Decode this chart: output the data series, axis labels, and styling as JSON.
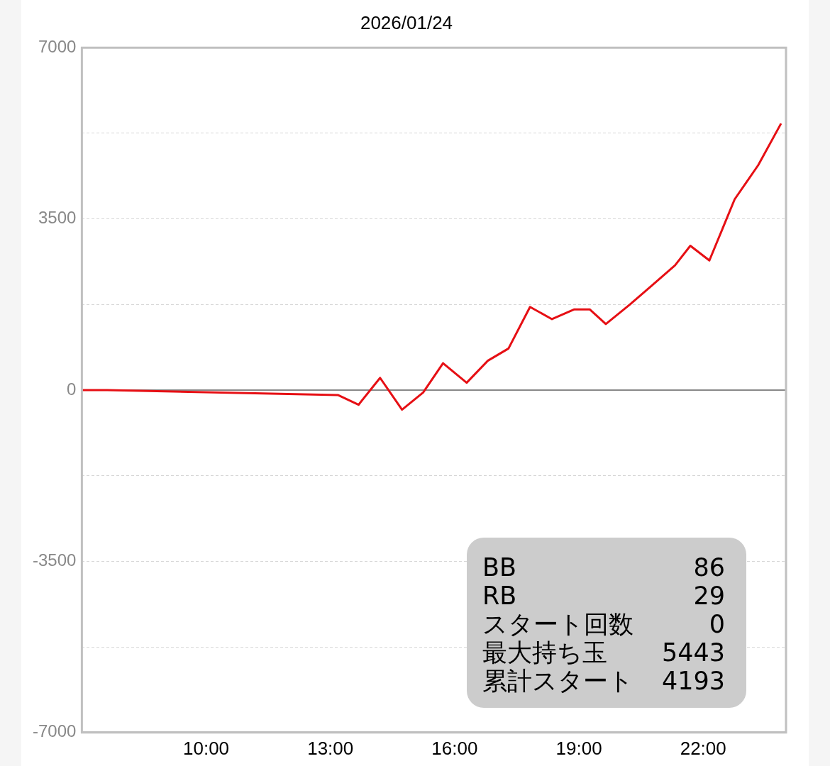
{
  "chart_data": {
    "type": "line",
    "title": "2026/01/24",
    "x": [
      7,
      7.61,
      13.18,
      13.68,
      14.2,
      14.73,
      15.24,
      15.72,
      16.29,
      16.8,
      17.3,
      17.82,
      18.35,
      18.89,
      19.26,
      19.65,
      20.23,
      20.78,
      21.32,
      21.69,
      22.15,
      22.76,
      23.33,
      23.88
    ],
    "series": [
      {
        "color": "#e60f14",
        "values": [
          0,
          0,
          -100,
          -300,
          250,
          -400,
          -50,
          550,
          150,
          600,
          850,
          1700,
          1450,
          1650,
          1650,
          1350,
          1750,
          2150,
          2550,
          2950,
          2650,
          3900,
          4600,
          5450
        ]
      }
    ],
    "xlim": [
      7,
      24
    ],
    "xticks": [
      {
        "value": 10,
        "label": "10:00"
      },
      {
        "value": 13,
        "label": "13:00"
      },
      {
        "value": 16,
        "label": "16:00"
      },
      {
        "value": 19,
        "label": "19:00"
      },
      {
        "value": 22,
        "label": "22:00"
      }
    ],
    "ylim": [
      -7000,
      7000
    ],
    "yticks": [
      -7000,
      {
        "value": -5250,
        "label": null
      },
      -3500,
      {
        "value": -1750,
        "label": null
      },
      0,
      {
        "value": 1750,
        "label": null
      },
      3500,
      {
        "value": 5250,
        "label": null
      },
      7000
    ],
    "grid": "y",
    "legend": false,
    "marker": "none",
    "line_style": "solid",
    "ref_lines": [
      {
        "axis": "y",
        "value": 0,
        "color": "#888888"
      }
    ],
    "annotations": [
      "BB 86",
      "RB 29",
      "スタート回数 0",
      "最大持ち玉 5443",
      "累計スタート 4193"
    ]
  }
}
